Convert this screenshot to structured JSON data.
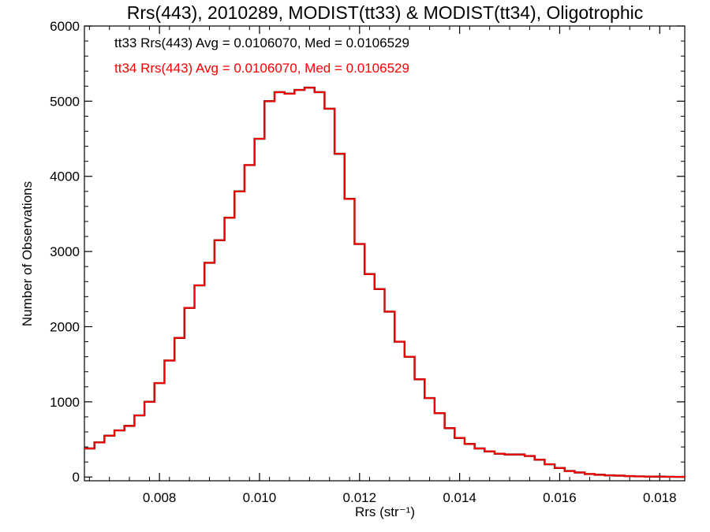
{
  "chart_data": {
    "type": "line",
    "title": "Rrs(443), 2010289, MODIST(tt33) & MODIST(tt34), Oligotrophic",
    "xlabel": "Rrs (str⁻¹)",
    "ylabel": "Number of Observations",
    "xlim": [
      0.0065,
      0.0185
    ],
    "ylim": [
      -50,
      6000
    ],
    "xticks": [
      0.008,
      0.01,
      0.012,
      0.014,
      0.016,
      0.018
    ],
    "xtick_labels": [
      "0.008",
      "0.010",
      "0.012",
      "0.014",
      "0.016",
      "0.018"
    ],
    "yticks": [
      0,
      1000,
      2000,
      3000,
      4000,
      5000,
      6000
    ],
    "ytick_labels": [
      "0",
      "1000",
      "2000",
      "3000",
      "4000",
      "5000",
      "6000"
    ],
    "grid": false,
    "legend_position": "top-left",
    "series": [
      {
        "name": "tt33",
        "color": "#000000",
        "annotation": "tt33 Rrs(443) Avg = 0.0106070, Med = 0.0106529",
        "x": [
          0.0065,
          0.0067,
          0.0069,
          0.0071,
          0.0073,
          0.0075,
          0.0077,
          0.0079,
          0.0081,
          0.0083,
          0.0085,
          0.0087,
          0.0089,
          0.0091,
          0.0093,
          0.0095,
          0.0097,
          0.0099,
          0.0101,
          0.0103,
          0.0105,
          0.0107,
          0.0109,
          0.0111,
          0.0113,
          0.0115,
          0.0117,
          0.0119,
          0.0121,
          0.0123,
          0.0125,
          0.0127,
          0.0129,
          0.0131,
          0.0133,
          0.0135,
          0.0137,
          0.0139,
          0.0141,
          0.0143,
          0.0145,
          0.0147,
          0.0149,
          0.0151,
          0.0153,
          0.0155,
          0.0157,
          0.0159,
          0.0161,
          0.0163,
          0.0165,
          0.0167,
          0.0169,
          0.0171,
          0.0173,
          0.0175,
          0.0177,
          0.0179,
          0.0181,
          0.0183,
          0.0185
        ],
        "y": [
          380,
          460,
          550,
          620,
          680,
          820,
          1000,
          1250,
          1550,
          1850,
          2250,
          2550,
          2850,
          3150,
          3450,
          3800,
          4150,
          4500,
          5000,
          5120,
          5100,
          5150,
          5180,
          5120,
          4900,
          4300,
          3700,
          3100,
          2700,
          2500,
          2200,
          1800,
          1600,
          1300,
          1050,
          850,
          650,
          520,
          440,
          380,
          340,
          310,
          300,
          300,
          280,
          230,
          170,
          120,
          80,
          60,
          40,
          30,
          22,
          18,
          12,
          8,
          6,
          5,
          3,
          2,
          1
        ]
      },
      {
        "name": "tt34",
        "color": "#ff0000",
        "annotation": "tt34 Rrs(443) Avg = 0.0106070, Med = 0.0106529",
        "x": [
          0.0065,
          0.0067,
          0.0069,
          0.0071,
          0.0073,
          0.0075,
          0.0077,
          0.0079,
          0.0081,
          0.0083,
          0.0085,
          0.0087,
          0.0089,
          0.0091,
          0.0093,
          0.0095,
          0.0097,
          0.0099,
          0.0101,
          0.0103,
          0.0105,
          0.0107,
          0.0109,
          0.0111,
          0.0113,
          0.0115,
          0.0117,
          0.0119,
          0.0121,
          0.0123,
          0.0125,
          0.0127,
          0.0129,
          0.0131,
          0.0133,
          0.0135,
          0.0137,
          0.0139,
          0.0141,
          0.0143,
          0.0145,
          0.0147,
          0.0149,
          0.0151,
          0.0153,
          0.0155,
          0.0157,
          0.0159,
          0.0161,
          0.0163,
          0.0165,
          0.0167,
          0.0169,
          0.0171,
          0.0173,
          0.0175,
          0.0177,
          0.0179,
          0.0181,
          0.0183,
          0.0185
        ],
        "y": [
          380,
          460,
          550,
          620,
          680,
          820,
          1000,
          1250,
          1550,
          1850,
          2250,
          2550,
          2850,
          3150,
          3450,
          3800,
          4150,
          4500,
          5000,
          5120,
          5100,
          5150,
          5180,
          5120,
          4900,
          4300,
          3700,
          3100,
          2700,
          2500,
          2200,
          1800,
          1600,
          1300,
          1050,
          850,
          650,
          520,
          440,
          380,
          340,
          310,
          300,
          300,
          280,
          230,
          170,
          120,
          80,
          60,
          40,
          30,
          22,
          18,
          12,
          8,
          6,
          5,
          3,
          2,
          1
        ]
      }
    ]
  }
}
